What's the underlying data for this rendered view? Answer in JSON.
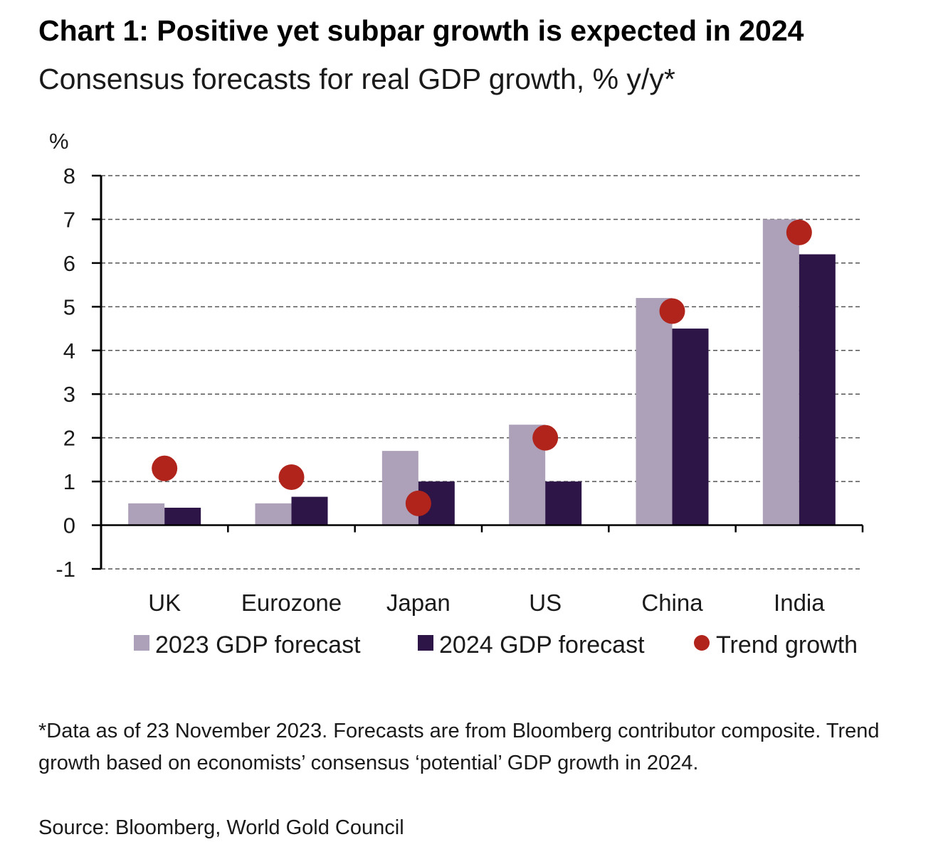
{
  "chart_data": {
    "type": "bar",
    "title": "Chart 1: Positive yet subpar growth is expected in 2024",
    "subtitle": "Consensus forecasts for real GDP growth, % y/y*",
    "ylabel": "%",
    "ylim": [
      -1,
      8
    ],
    "yticks": [
      "8",
      "7",
      "6",
      "5",
      "4",
      "3",
      "2",
      "1",
      "0",
      "-1"
    ],
    "categories": [
      "UK",
      "Eurozone",
      "Japan",
      "US",
      "China",
      "India"
    ],
    "series": [
      {
        "name": "2023 GDP forecast",
        "kind": "bar",
        "color": "#ada1b9",
        "values": [
          0.5,
          0.5,
          1.7,
          2.3,
          5.2,
          7.0
        ]
      },
      {
        "name": "2024 GDP forecast",
        "kind": "bar",
        "color": "#2e1548",
        "values": [
          0.4,
          0.65,
          1.0,
          1.0,
          4.5,
          6.2
        ]
      },
      {
        "name": "Trend growth",
        "kind": "point",
        "color": "#b0241c",
        "values": [
          1.3,
          1.1,
          0.5,
          2.0,
          4.9,
          6.7
        ]
      }
    ],
    "grid": true,
    "grid_style": "dashed",
    "legend_position": "bottom"
  },
  "footnote": "*Data as of 23 November 2023. Forecasts are from Bloomberg contributor composite. Trend growth based on economists’ consensus ‘potential’ GDP growth in 2024.",
  "source": "Source: Bloomberg, World Gold Council"
}
